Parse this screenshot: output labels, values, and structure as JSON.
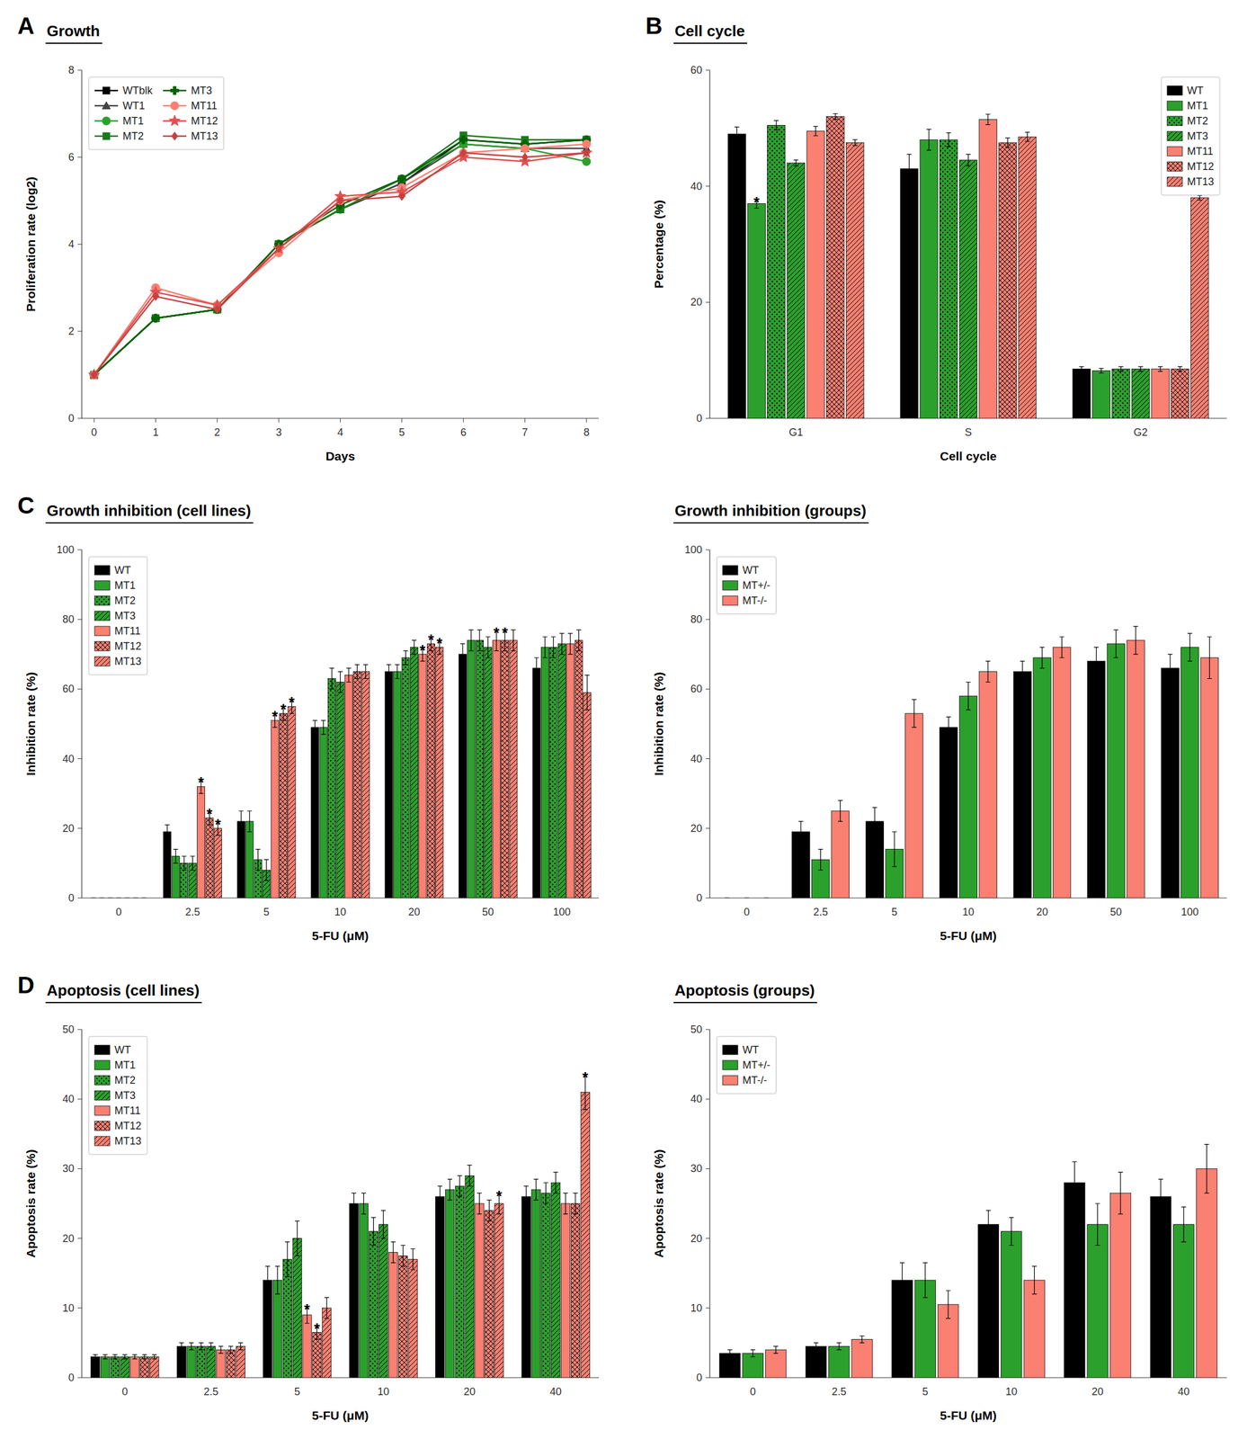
{
  "chart_data": [
    {
      "type": "line",
      "title": "Growth",
      "annotations": [
        "A"
      ],
      "xlabel": "Days",
      "ylabel": "Proliferation rate (log2)",
      "x": [
        0,
        1,
        2,
        3,
        4,
        5,
        6,
        7,
        8
      ],
      "xlim": [
        -0.2,
        8.2
      ],
      "xticks": [
        0,
        1,
        2,
        3,
        4,
        5,
        6,
        7,
        8
      ],
      "ylim": [
        0,
        8
      ],
      "yticks": [
        0,
        2,
        4,
        6,
        8
      ],
      "grid": false,
      "legend": "upper left",
      "series": [
        {
          "name": "WTblk",
          "color": "#000000",
          "marker": "square",
          "values": [
            1.0,
            2.3,
            2.5,
            4.0,
            4.8,
            5.4,
            6.4,
            6.3,
            6.4
          ]
        },
        {
          "name": "WT1",
          "color": "#444444",
          "marker": "triangle",
          "values": [
            1.0,
            2.3,
            2.5,
            4.0,
            4.8,
            5.4,
            6.3,
            6.2,
            6.2
          ]
        },
        {
          "name": "MT1",
          "color": "#2ca02c",
          "marker": "circle",
          "values": [
            1.0,
            2.3,
            2.5,
            4.0,
            4.8,
            5.5,
            6.3,
            6.2,
            5.9
          ]
        },
        {
          "name": "MT2",
          "color": "#1a7a1a",
          "marker": "square",
          "values": [
            1.0,
            2.3,
            2.5,
            4.0,
            4.8,
            5.5,
            6.5,
            6.4,
            6.4
          ]
        },
        {
          "name": "MT3",
          "color": "#006400",
          "marker": "plus",
          "values": [
            1.0,
            2.3,
            2.5,
            4.0,
            4.9,
            5.5,
            6.4,
            6.3,
            6.4
          ]
        },
        {
          "name": "MT11",
          "color": "#fa8072",
          "marker": "circle",
          "values": [
            1.0,
            3.0,
            2.6,
            3.8,
            5.0,
            5.3,
            6.1,
            6.2,
            6.3
          ]
        },
        {
          "name": "MT12",
          "color": "#e05050",
          "marker": "star",
          "values": [
            1.0,
            2.9,
            2.6,
            3.9,
            5.1,
            5.2,
            6.0,
            5.9,
            6.1
          ]
        },
        {
          "name": "MT13",
          "color": "#c84040",
          "marker": "diamond",
          "values": [
            1.0,
            2.8,
            2.5,
            3.9,
            5.0,
            5.1,
            6.1,
            6.0,
            6.1
          ]
        }
      ]
    },
    {
      "type": "bar",
      "title": "Cell cycle",
      "annotations": [
        "B"
      ],
      "xlabel": "Cell cycle",
      "ylabel": "Percentage (%)",
      "categories": [
        "G1",
        "S",
        "G2"
      ],
      "ylim": [
        0,
        60
      ],
      "yticks": [
        0,
        20,
        40,
        60
      ],
      "grid": false,
      "legend": "upper right",
      "series": [
        {
          "name": "WT",
          "color": "#000000",
          "values": [
            49.0,
            43.0,
            8.5
          ],
          "errors": [
            1.2,
            2.5,
            0.4
          ]
        },
        {
          "name": "MT1",
          "color": "#2ca02c",
          "values": [
            37.0,
            48.0,
            8.2
          ],
          "errors": [
            0.8,
            1.8,
            0.4
          ],
          "annotations": [
            "*",
            null,
            null
          ]
        },
        {
          "name": "MT2",
          "color": "#2ca02c",
          "values": [
            50.5,
            48.0,
            8.5
          ],
          "errors": [
            0.8,
            1.2,
            0.4
          ]
        },
        {
          "name": "MT3",
          "color": "#2ca02c",
          "values": [
            44.0,
            44.5,
            8.5
          ],
          "errors": [
            0.5,
            1.0,
            0.4
          ]
        },
        {
          "name": "MT11",
          "color": "#fa8072",
          "values": [
            49.5,
            51.5,
            8.5
          ],
          "errors": [
            0.8,
            0.9,
            0.4
          ]
        },
        {
          "name": "MT12",
          "color": "#fa8072",
          "values": [
            52.0,
            47.5,
            8.5
          ],
          "errors": [
            0.5,
            0.8,
            0.4
          ]
        },
        {
          "name": "MT13",
          "color": "#fa8072",
          "values": [
            47.5,
            48.5,
            38.0
          ],
          "errors": [
            0.5,
            0.8,
            0.4
          ]
        }
      ]
    },
    {
      "type": "bar",
      "title": "Growth inhibition (cell lines)",
      "annotations": [
        "C"
      ],
      "xlabel": "5-FU (μM)",
      "ylabel": "Inhibition rate (%)",
      "categories": [
        "0",
        "2.5",
        "5",
        "10",
        "20",
        "50",
        "100"
      ],
      "ylim": [
        0,
        100
      ],
      "yticks": [
        0,
        20,
        40,
        60,
        80,
        100
      ],
      "grid": false,
      "legend": "upper left",
      "series": [
        {
          "name": "WT",
          "color": "#000000",
          "values": [
            0,
            19,
            22,
            49,
            65,
            70,
            66
          ],
          "errors": [
            0,
            2,
            3,
            2,
            2,
            3,
            3
          ]
        },
        {
          "name": "MT1",
          "color": "#2ca02c",
          "values": [
            0,
            12,
            22,
            49,
            65,
            74,
            72
          ],
          "errors": [
            0,
            2,
            3,
            2,
            2,
            3,
            3
          ]
        },
        {
          "name": "MT2",
          "color": "#2ca02c",
          "values": [
            0,
            10,
            11,
            63,
            69,
            74,
            72
          ],
          "errors": [
            0,
            2,
            3,
            3,
            2,
            3,
            3
          ]
        },
        {
          "name": "MT3",
          "color": "#2ca02c",
          "values": [
            0,
            10,
            8,
            62,
            72,
            72,
            73
          ],
          "errors": [
            0,
            2,
            3,
            3,
            2,
            3,
            3
          ]
        },
        {
          "name": "MT11",
          "color": "#fa8072",
          "values": [
            0,
            32,
            51,
            64,
            70,
            74,
            73
          ],
          "errors": [
            0,
            2,
            2,
            2,
            2,
            3,
            3
          ],
          "annotations": [
            null,
            "*",
            "*",
            null,
            "*",
            "*",
            null
          ]
        },
        {
          "name": "MT12",
          "color": "#fa8072",
          "values": [
            0,
            23,
            53,
            65,
            73,
            74,
            74
          ],
          "errors": [
            0,
            2,
            2,
            2,
            2,
            3,
            3
          ],
          "annotations": [
            null,
            "*",
            "*",
            null,
            "*",
            "*",
            null
          ]
        },
        {
          "name": "MT13",
          "color": "#fa8072",
          "values": [
            0,
            20,
            55,
            65,
            72,
            74,
            59
          ],
          "errors": [
            0,
            2,
            2,
            2,
            2,
            3,
            5
          ],
          "annotations": [
            null,
            "*",
            "*",
            null,
            "*",
            null,
            null
          ]
        }
      ]
    },
    {
      "type": "bar",
      "title": "Growth inhibition (groups)",
      "xlabel": "5-FU (μM)",
      "ylabel": "Inhibition rate (%)",
      "categories": [
        "0",
        "2.5",
        "5",
        "10",
        "20",
        "50",
        "100"
      ],
      "ylim": [
        0,
        100
      ],
      "yticks": [
        0,
        20,
        40,
        60,
        80,
        100
      ],
      "grid": false,
      "legend": "upper left",
      "series": [
        {
          "name": "WT",
          "color": "#000000",
          "values": [
            0,
            19,
            22,
            49,
            65,
            68,
            66
          ],
          "errors": [
            0,
            3,
            4,
            3,
            3,
            4,
            4
          ]
        },
        {
          "name": "MT+/-",
          "color": "#2ca02c",
          "values": [
            0,
            11,
            14,
            58,
            69,
            73,
            72
          ],
          "errors": [
            0,
            3,
            5,
            4,
            3,
            4,
            4
          ]
        },
        {
          "name": "MT-/-",
          "color": "#fa8072",
          "values": [
            0,
            25,
            53,
            65,
            72,
            74,
            69
          ],
          "errors": [
            0,
            3,
            4,
            3,
            3,
            4,
            6
          ]
        }
      ]
    },
    {
      "type": "bar",
      "title": "Apoptosis (cell lines)",
      "annotations": [
        "D"
      ],
      "xlabel": "5-FU (μM)",
      "ylabel": "Apoptosis rate (%)",
      "categories": [
        "0",
        "2.5",
        "5",
        "10",
        "20",
        "40"
      ],
      "ylim": [
        0,
        50
      ],
      "yticks": [
        0,
        10,
        20,
        30,
        40,
        50
      ],
      "grid": false,
      "legend": "upper left",
      "series": [
        {
          "name": "WT",
          "color": "#000000",
          "values": [
            3.0,
            4.5,
            14.0,
            25.0,
            26.0,
            26.0
          ],
          "errors": [
            0.3,
            0.5,
            2.0,
            1.5,
            1.5,
            1.5
          ]
        },
        {
          "name": "MT1",
          "color": "#2ca02c",
          "values": [
            3.0,
            4.5,
            14.0,
            25.0,
            27.0,
            27.0
          ],
          "errors": [
            0.3,
            0.5,
            2.0,
            1.5,
            1.5,
            1.5
          ]
        },
        {
          "name": "MT2",
          "color": "#2ca02c",
          "values": [
            3.0,
            4.5,
            17.0,
            21.0,
            27.5,
            26.5
          ],
          "errors": [
            0.3,
            0.5,
            2.5,
            2.0,
            1.5,
            1.5
          ]
        },
        {
          "name": "MT3",
          "color": "#2ca02c",
          "values": [
            3.0,
            4.5,
            20.0,
            22.0,
            29.0,
            28.0
          ],
          "errors": [
            0.3,
            0.5,
            2.5,
            2.0,
            1.5,
            1.5
          ]
        },
        {
          "name": "MT11",
          "color": "#fa8072",
          "values": [
            3.0,
            4.0,
            9.0,
            18.0,
            25.0,
            25.0
          ],
          "errors": [
            0.3,
            0.5,
            1.2,
            1.5,
            1.5,
            1.5
          ],
          "annotations": [
            null,
            null,
            "*",
            null,
            null,
            null
          ]
        },
        {
          "name": "MT12",
          "color": "#fa8072",
          "values": [
            3.0,
            4.0,
            6.5,
            17.5,
            24.0,
            25.0
          ],
          "errors": [
            0.3,
            0.5,
            1.0,
            1.5,
            1.5,
            1.5
          ],
          "annotations": [
            null,
            null,
            "*",
            null,
            null,
            null
          ]
        },
        {
          "name": "MT13",
          "color": "#fa8072",
          "values": [
            3.0,
            4.5,
            10.0,
            17.0,
            25.0,
            41.0
          ],
          "errors": [
            0.3,
            0.5,
            1.5,
            1.5,
            1.5,
            2.5
          ],
          "annotations": [
            null,
            null,
            null,
            null,
            "*",
            "*"
          ]
        }
      ]
    },
    {
      "type": "bar",
      "title": "Apoptosis (groups)",
      "xlabel": "5-FU (μM)",
      "ylabel": "Apoptosis rate (%)",
      "categories": [
        "0",
        "2.5",
        "5",
        "10",
        "20",
        "40"
      ],
      "ylim": [
        0,
        50
      ],
      "yticks": [
        0,
        10,
        20,
        30,
        40,
        50
      ],
      "grid": false,
      "legend": "upper left",
      "series": [
        {
          "name": "WT",
          "color": "#000000",
          "values": [
            3.5,
            4.5,
            14.0,
            22.0,
            28.0,
            26.0
          ],
          "errors": [
            0.5,
            0.5,
            2.5,
            2.0,
            3.0,
            2.5
          ]
        },
        {
          "name": "MT+/-",
          "color": "#2ca02c",
          "values": [
            3.5,
            4.5,
            14.0,
            21.0,
            22.0,
            22.0
          ],
          "errors": [
            0.5,
            0.5,
            2.5,
            2.0,
            3.0,
            2.5
          ]
        },
        {
          "name": "MT-/-",
          "color": "#fa8072",
          "values": [
            4.0,
            5.5,
            10.5,
            14.0,
            26.5,
            30.0
          ],
          "errors": [
            0.5,
            0.5,
            2.0,
            2.0,
            3.0,
            3.5
          ]
        }
      ]
    }
  ]
}
